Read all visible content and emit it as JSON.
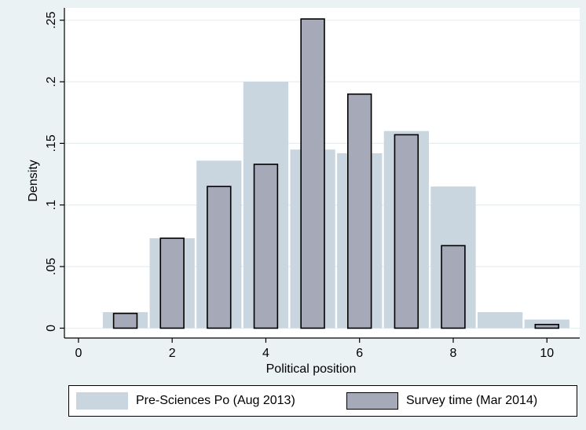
{
  "chart_data": {
    "type": "bar",
    "xlabel": "Political position",
    "ylabel": "Density",
    "xlim": [
      -0.3,
      10.7
    ],
    "ylim": [
      -0.008,
      0.26
    ],
    "x_ticks": [
      0,
      2,
      4,
      6,
      8,
      10
    ],
    "y_ticks": [
      0,
      0.05,
      0.1,
      0.15,
      0.2,
      0.25
    ],
    "y_tick_labels": [
      "0",
      ".05",
      ".1",
      ".15",
      ".2",
      ".25"
    ],
    "grid": true,
    "legend_position": "bottom",
    "series": [
      {
        "name": "Pre-Sciences Po (Aug 2013)",
        "color": "#c9d6e0",
        "x": [
          1,
          2,
          3,
          4,
          5,
          6,
          7,
          8,
          9,
          10
        ],
        "values": [
          0.013,
          0.073,
          0.136,
          0.2,
          0.145,
          0.142,
          0.16,
          0.115,
          0.013,
          0.007
        ]
      },
      {
        "name": "Survey time (Mar 2014)",
        "color": "#a6a9b8",
        "x": [
          1,
          2,
          3,
          4,
          5,
          6,
          7,
          8,
          10
        ],
        "values": [
          0.012,
          0.073,
          0.115,
          0.133,
          0.251,
          0.19,
          0.157,
          0.067,
          0.003
        ]
      }
    ]
  }
}
